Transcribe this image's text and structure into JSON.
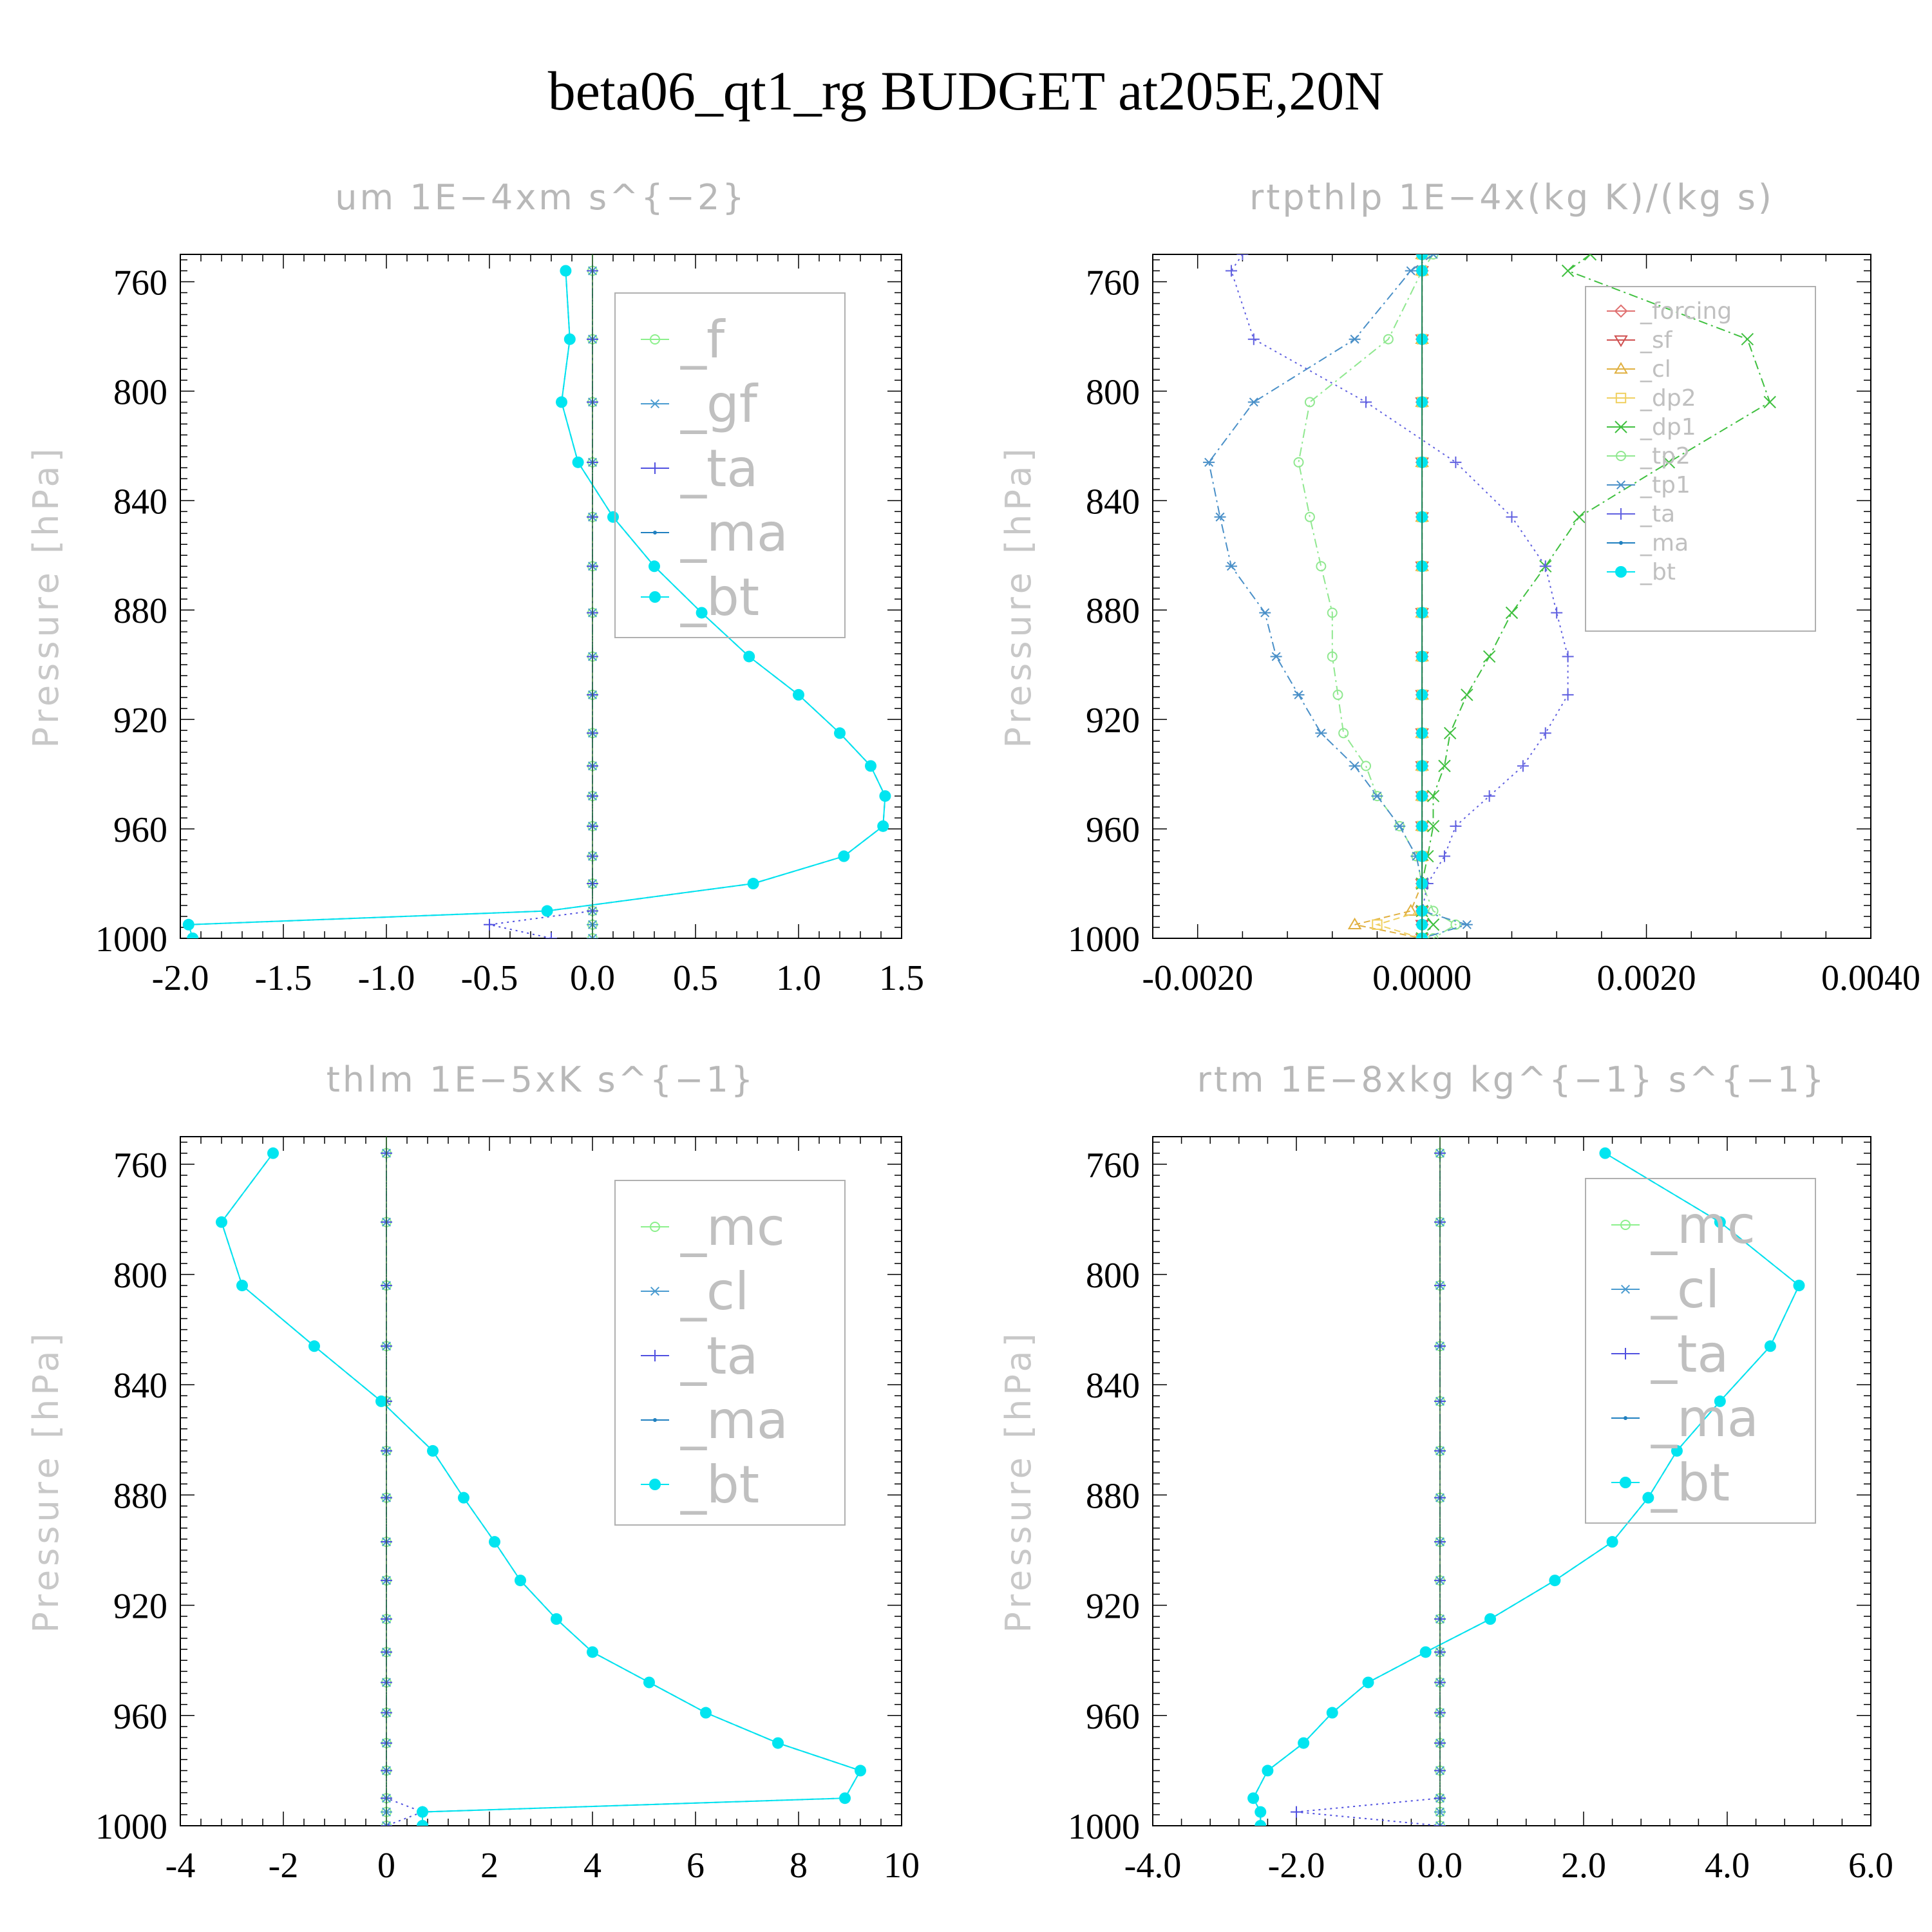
{
  "title": "beta06_qt1_rg  BUDGET at205E,20N",
  "chart_data": [
    {
      "type": "line",
      "title": "um   1E−4xm s^{−2}",
      "ylabel": "Pressure [hPa]",
      "xlim": [
        -2.0,
        1.5
      ],
      "ylim": [
        1000,
        750
      ],
      "xticks": [
        "-2.0",
        "-1.5",
        "-1.0",
        "-0.5",
        "0.0",
        "0.5",
        "1.0",
        "1.5"
      ],
      "xtick_values": [
        -2.0,
        -1.5,
        -1.0,
        -0.5,
        0.0,
        0.5,
        1.0,
        1.5
      ],
      "yticks": [
        "760",
        "800",
        "840",
        "880",
        "920",
        "960",
        "1000"
      ],
      "ytick_values": [
        760,
        800,
        840,
        880,
        920,
        960,
        1000
      ],
      "legend": "top-right",
      "pressure": [
        756,
        781,
        804,
        826,
        846,
        864,
        881,
        897,
        911,
        925,
        937,
        948,
        959,
        970,
        980,
        990,
        995,
        1000
      ],
      "series": [
        {
          "name": "_f",
          "color": "#8cf08c",
          "marker": "circle",
          "dash": "dashdot",
          "values": [
            0,
            0,
            0,
            0,
            0,
            0,
            0,
            0,
            0,
            0,
            0,
            0,
            0,
            0,
            0,
            0,
            0,
            0
          ]
        },
        {
          "name": "_gf",
          "color": "#4a9bd0",
          "marker": "asterisk",
          "dash": "dashdot",
          "values": [
            0,
            0,
            0,
            0,
            0,
            0,
            0,
            0,
            0,
            0,
            0,
            0,
            0,
            0,
            0,
            0,
            0,
            0
          ]
        },
        {
          "name": "_ta",
          "color": "#5050e0",
          "marker": "plus",
          "dash": "dot",
          "values": [
            0,
            0,
            0,
            0,
            0,
            0,
            0,
            0,
            0,
            0,
            0,
            0,
            0,
            0,
            0,
            0,
            -0.5,
            -0.2
          ]
        },
        {
          "name": "_ma",
          "color": "#2080c0",
          "marker": "dot",
          "dash": "dash",
          "values": [
            -0.13,
            -0.11,
            -0.15,
            -0.07,
            0.1,
            0.3,
            0.53,
            0.76,
            1.0,
            1.2,
            1.35,
            1.42,
            1.41,
            1.22,
            0.78,
            -0.22,
            -1.96,
            -1.94
          ]
        },
        {
          "name": "_bt",
          "color": "#00e5f0",
          "marker": "filled",
          "dash": "solid",
          "values": [
            -0.13,
            -0.11,
            -0.15,
            -0.07,
            0.1,
            0.3,
            0.53,
            0.76,
            1.0,
            1.2,
            1.35,
            1.42,
            1.41,
            1.22,
            0.78,
            -0.22,
            -1.96,
            -1.94
          ]
        }
      ]
    },
    {
      "type": "line",
      "title": "rtpthlp   1E−4x(kg K)/(kg s)",
      "ylabel": "Pressure [hPa]",
      "xlim": [
        -0.0024,
        0.004
      ],
      "ylim": [
        1000,
        750
      ],
      "xticks": [
        "-0.0020",
        "0.0000",
        "0.0020",
        "0.0040"
      ],
      "xtick_values": [
        -0.002,
        0.0,
        0.002,
        0.004
      ],
      "yticks": [
        "760",
        "800",
        "840",
        "880",
        "920",
        "960",
        "1000"
      ],
      "ytick_values": [
        760,
        800,
        840,
        880,
        920,
        960,
        1000
      ],
      "legend": "top-right",
      "pressure": [
        750,
        756,
        781,
        804,
        826,
        846,
        864,
        881,
        897,
        911,
        925,
        937,
        948,
        959,
        970,
        980,
        990,
        995,
        1000
      ],
      "series": [
        {
          "name": "_forcing",
          "color": "#e07070",
          "marker": "diamond",
          "dash": "solid",
          "values": [
            0,
            0,
            0,
            0,
            0,
            0,
            0,
            0,
            0,
            0,
            0,
            0,
            0,
            0,
            0,
            0,
            0,
            0,
            0
          ]
        },
        {
          "name": "_sf",
          "color": "#d05050",
          "marker": "tridown",
          "dash": "dash",
          "values": [
            0,
            0,
            0,
            0,
            0,
            0,
            0,
            0,
            0,
            0,
            0,
            0,
            0,
            0,
            0,
            0,
            0,
            0,
            0
          ]
        },
        {
          "name": "_cl",
          "color": "#e0b040",
          "marker": "triangle",
          "dash": "dash",
          "values": [
            0,
            0,
            0,
            0,
            0,
            0,
            0,
            0,
            0,
            0,
            0,
            0,
            0,
            0,
            0,
            0,
            -0.0001,
            -0.0006,
            0
          ]
        },
        {
          "name": "_dp2",
          "color": "#f0d060",
          "marker": "square",
          "dash": "dash",
          "values": [
            0,
            0,
            0,
            0,
            0,
            0,
            0,
            0,
            0,
            0,
            0,
            0,
            0,
            0,
            0,
            0,
            0,
            -0.0004,
            0
          ]
        },
        {
          "name": "_dp1",
          "color": "#40c040",
          "marker": "cross",
          "dash": "dashdot",
          "values": [
            0.0015,
            0.0013,
            0.0029,
            0.0031,
            0.0022,
            0.0014,
            0.0011,
            0.0008,
            0.0006,
            0.0004,
            0.00025,
            0.0002,
            0.0001,
            0.0001,
            5e-05,
            0.0,
            0.0,
            0.0001,
            0.0
          ]
        },
        {
          "name": "_tp2",
          "color": "#90e890",
          "marker": "circle",
          "dash": "dashdot",
          "values": [
            0.0001,
            0.0,
            -0.0003,
            -0.001,
            -0.0011,
            -0.001,
            -0.0009,
            -0.0008,
            -0.0008,
            -0.00075,
            -0.0007,
            -0.0005,
            -0.0004,
            -0.0002,
            -5e-05,
            0.0,
            0.0001,
            0.0003,
            0.0001
          ]
        },
        {
          "name": "_tp1",
          "color": "#4a90c8",
          "marker": "asterisk",
          "dash": "dashdot",
          "values": [
            0.0001,
            -0.0001,
            -0.0006,
            -0.0015,
            -0.0019,
            -0.0018,
            -0.0017,
            -0.0014,
            -0.0013,
            -0.0011,
            -0.0009,
            -0.0006,
            -0.0004,
            -0.0002,
            -5e-05,
            0.0,
            0.0,
            0.0004,
            0.0
          ]
        },
        {
          "name": "_ta",
          "color": "#6060e0",
          "marker": "plus",
          "dash": "dot",
          "values": [
            -0.0016,
            -0.0017,
            -0.0015,
            -0.0005,
            0.0003,
            0.0008,
            0.0011,
            0.0012,
            0.0013,
            0.0013,
            0.0011,
            0.0009,
            0.0006,
            0.0003,
            0.0002,
            5e-05,
            0.0,
            0.0,
            0.0
          ]
        },
        {
          "name": "_ma",
          "color": "#2080c0",
          "marker": "dot",
          "dash": "dash",
          "values": [
            0,
            0,
            0,
            0,
            0,
            0,
            0,
            0,
            0,
            0,
            0,
            0,
            0,
            0,
            0,
            0,
            0,
            0,
            0
          ]
        },
        {
          "name": "_bt",
          "color": "#00e5f0",
          "marker": "filled",
          "dash": "solid",
          "values": [
            0,
            0,
            0,
            0,
            0,
            0,
            0,
            0,
            0,
            0,
            0,
            0,
            0,
            0,
            0,
            0,
            0,
            0,
            0
          ]
        }
      ]
    },
    {
      "type": "line",
      "title": "thlm   1E−5xK s^{−1}",
      "ylabel": "Pressure [hPa]",
      "xlim": [
        -4,
        10
      ],
      "ylim": [
        1000,
        750
      ],
      "xticks": [
        "-4",
        "-2",
        "0",
        "2",
        "4",
        "6",
        "8",
        "10"
      ],
      "xtick_values": [
        -4,
        -2,
        0,
        2,
        4,
        6,
        8,
        10
      ],
      "yticks": [
        "760",
        "800",
        "840",
        "880",
        "920",
        "960",
        "1000"
      ],
      "ytick_values": [
        760,
        800,
        840,
        880,
        920,
        960,
        1000
      ],
      "legend": "top-right",
      "pressure": [
        756,
        781,
        804,
        826,
        846,
        864,
        881,
        897,
        911,
        925,
        937,
        948,
        959,
        970,
        980,
        990,
        995,
        1000
      ],
      "series": [
        {
          "name": "_mc",
          "color": "#8cf08c",
          "marker": "circle",
          "dash": "dashdot",
          "values": [
            0,
            0,
            0,
            0,
            0,
            0,
            0,
            0,
            0,
            0,
            0,
            0,
            0,
            0,
            0,
            0,
            0,
            0
          ]
        },
        {
          "name": "_cl",
          "color": "#4a9bd0",
          "marker": "asterisk",
          "dash": "dashdot",
          "values": [
            0,
            0,
            0,
            0,
            0,
            0,
            0,
            0,
            0,
            0,
            0,
            0,
            0,
            0,
            0,
            0,
            0,
            0
          ]
        },
        {
          "name": "_ta",
          "color": "#5050e0",
          "marker": "plus",
          "dash": "dot",
          "values": [
            0,
            0,
            0,
            0,
            0,
            0,
            0,
            0,
            0,
            0,
            0,
            0,
            0,
            0,
            0,
            0,
            0.7,
            0
          ]
        },
        {
          "name": "_ma",
          "color": "#2080c0",
          "marker": "dot",
          "dash": "dash",
          "values": [
            -2.2,
            -3.2,
            -2.8,
            -1.4,
            -0.1,
            0.9,
            1.5,
            2.1,
            2.6,
            3.3,
            4.0,
            5.1,
            6.2,
            7.6,
            9.2,
            8.9,
            0.7,
            0.7
          ]
        },
        {
          "name": "_bt",
          "color": "#00e5f0",
          "marker": "filled",
          "dash": "solid",
          "values": [
            -2.2,
            -3.2,
            -2.8,
            -1.4,
            -0.1,
            0.9,
            1.5,
            2.1,
            2.6,
            3.3,
            4.0,
            5.1,
            6.2,
            7.6,
            9.2,
            8.9,
            0.7,
            0.7
          ]
        }
      ]
    },
    {
      "type": "line",
      "title": "rtm   1E−8xkg kg^{−1} s^{−1}",
      "ylabel": "Pressure [hPa]",
      "xlim": [
        -4.0,
        6.0
      ],
      "ylim": [
        1000,
        750
      ],
      "xticks": [
        "-4.0",
        "-2.0",
        "0.0",
        "2.0",
        "4.0",
        "6.0"
      ],
      "xtick_values": [
        -4.0,
        -2.0,
        0.0,
        2.0,
        4.0,
        6.0
      ],
      "yticks": [
        "760",
        "800",
        "840",
        "880",
        "920",
        "960",
        "1000"
      ],
      "ytick_values": [
        760,
        800,
        840,
        880,
        920,
        960,
        1000
      ],
      "legend": "top-right",
      "pressure": [
        756,
        781,
        804,
        826,
        846,
        864,
        881,
        897,
        911,
        925,
        937,
        948,
        959,
        970,
        980,
        990,
        995,
        1000
      ],
      "series": [
        {
          "name": "_mc",
          "color": "#8cf08c",
          "marker": "circle",
          "dash": "dashdot",
          "values": [
            0,
            0,
            0,
            0,
            0,
            0,
            0,
            0,
            0,
            0,
            0,
            0,
            0,
            0,
            0,
            0,
            0,
            0
          ]
        },
        {
          "name": "_cl",
          "color": "#4a9bd0",
          "marker": "asterisk",
          "dash": "dashdot",
          "values": [
            0,
            0,
            0,
            0,
            0,
            0,
            0,
            0,
            0,
            0,
            0,
            0,
            0,
            0,
            0,
            0,
            0,
            0
          ]
        },
        {
          "name": "_ta",
          "color": "#5050e0",
          "marker": "plus",
          "dash": "dot",
          "values": [
            0,
            0,
            0,
            0,
            0,
            0,
            0,
            0,
            0,
            0,
            0,
            0,
            0,
            0,
            0,
            0,
            -2.0,
            0
          ]
        },
        {
          "name": "_ma",
          "color": "#2080c0",
          "marker": "dot",
          "dash": "dash",
          "values": [
            2.3,
            3.9,
            5.0,
            4.6,
            3.9,
            3.3,
            2.9,
            2.4,
            1.6,
            0.7,
            -0.2,
            -1.0,
            -1.5,
            -1.9,
            -2.4,
            -2.6,
            -2.5,
            -2.5
          ]
        },
        {
          "name": "_bt",
          "color": "#00e5f0",
          "marker": "filled",
          "dash": "solid",
          "values": [
            2.3,
            3.9,
            5.0,
            4.6,
            3.9,
            3.3,
            2.9,
            2.4,
            1.6,
            0.7,
            -0.2,
            -1.0,
            -1.5,
            -1.9,
            -2.4,
            -2.6,
            -2.5,
            -2.5
          ]
        }
      ]
    }
  ]
}
